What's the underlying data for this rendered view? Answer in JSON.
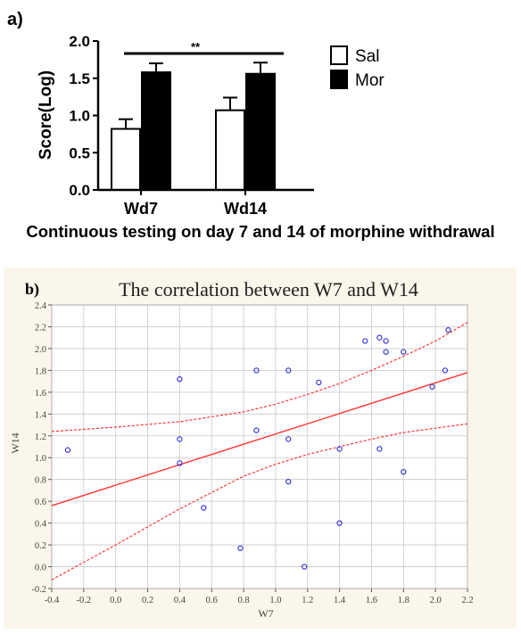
{
  "figure": {
    "panel_a_label": "a)",
    "panel_a_caption": "Continuous testing on day 7 and 14 of morphine withdrawal",
    "panel_b_label": "b)",
    "panel_b_background": "#fbf6ea"
  },
  "chart_data": [
    {
      "type": "bar",
      "panel": "a",
      "title": "",
      "categories": [
        "Wd7",
        "Wd14"
      ],
      "series": [
        {
          "name": "Sal",
          "color": "#ffffff",
          "values": [
            0.82,
            1.07
          ],
          "errors": [
            0.13,
            0.17
          ]
        },
        {
          "name": "Mor",
          "color": "#000000",
          "values": [
            1.58,
            1.56
          ],
          "errors": [
            0.12,
            0.15
          ]
        }
      ],
      "ylabel": "Score(Log)",
      "xlabel": "",
      "ylim": [
        0.0,
        2.0
      ],
      "yticks": [
        "0.0",
        "0.5",
        "1.0",
        "1.5",
        "2.0"
      ],
      "significance": "**",
      "legend_position": "top-right",
      "grid": false
    },
    {
      "type": "scatter",
      "panel": "b",
      "title": "The correlation between W7 and W14",
      "xlabel": "W7",
      "ylabel": "W14",
      "xlim": [
        -0.4,
        2.2
      ],
      "ylim": [
        -0.2,
        2.4
      ],
      "xticks": [
        "-0.4",
        "-0.2",
        "0.0",
        "0.2",
        "0.4",
        "0.6",
        "0.8",
        "1.0",
        "1.2",
        "1.4",
        "1.6",
        "1.8",
        "2.0",
        "2.2"
      ],
      "yticks": [
        "-0.2",
        "0.0",
        "0.2",
        "0.4",
        "0.6",
        "0.8",
        "1.0",
        "1.2",
        "1.4",
        "1.6",
        "1.8",
        "2.0",
        "2.2",
        "2.4"
      ],
      "grid": true,
      "points": [
        {
          "x": -0.3,
          "y": 1.07
        },
        {
          "x": 0.4,
          "y": 1.72
        },
        {
          "x": 0.4,
          "y": 1.17
        },
        {
          "x": 0.4,
          "y": 0.95
        },
        {
          "x": 0.55,
          "y": 0.54
        },
        {
          "x": 0.78,
          "y": 0.17
        },
        {
          "x": 0.88,
          "y": 1.8
        },
        {
          "x": 0.88,
          "y": 1.25
        },
        {
          "x": 1.08,
          "y": 1.8
        },
        {
          "x": 1.08,
          "y": 1.17
        },
        {
          "x": 1.08,
          "y": 0.78
        },
        {
          "x": 1.18,
          "y": 0.0
        },
        {
          "x": 1.27,
          "y": 1.69
        },
        {
          "x": 1.4,
          "y": 1.08
        },
        {
          "x": 1.4,
          "y": 0.4
        },
        {
          "x": 1.56,
          "y": 2.07
        },
        {
          "x": 1.65,
          "y": 2.1
        },
        {
          "x": 1.69,
          "y": 2.07
        },
        {
          "x": 1.69,
          "y": 1.97
        },
        {
          "x": 1.65,
          "y": 1.08
        },
        {
          "x": 1.8,
          "y": 1.97
        },
        {
          "x": 1.8,
          "y": 0.87
        },
        {
          "x": 1.98,
          "y": 1.65
        },
        {
          "x": 2.06,
          "y": 1.8
        },
        {
          "x": 2.08,
          "y": 2.17
        }
      ],
      "fit_line": {
        "x": [
          -0.4,
          2.2
        ],
        "y": [
          0.56,
          1.78
        ],
        "color": "#ff3333"
      },
      "confidence_band": {
        "x": [
          -0.4,
          0.0,
          0.4,
          0.8,
          1.0,
          1.2,
          1.4,
          1.6,
          1.8,
          2.0,
          2.2
        ],
        "upper": [
          1.24,
          1.28,
          1.33,
          1.42,
          1.49,
          1.58,
          1.68,
          1.8,
          1.93,
          2.07,
          2.24
        ],
        "lower": [
          -0.12,
          0.2,
          0.53,
          0.83,
          0.94,
          1.03,
          1.1,
          1.17,
          1.23,
          1.27,
          1.31
        ],
        "color": "#ff3333"
      },
      "point_color": "#2a2ad6"
    }
  ]
}
